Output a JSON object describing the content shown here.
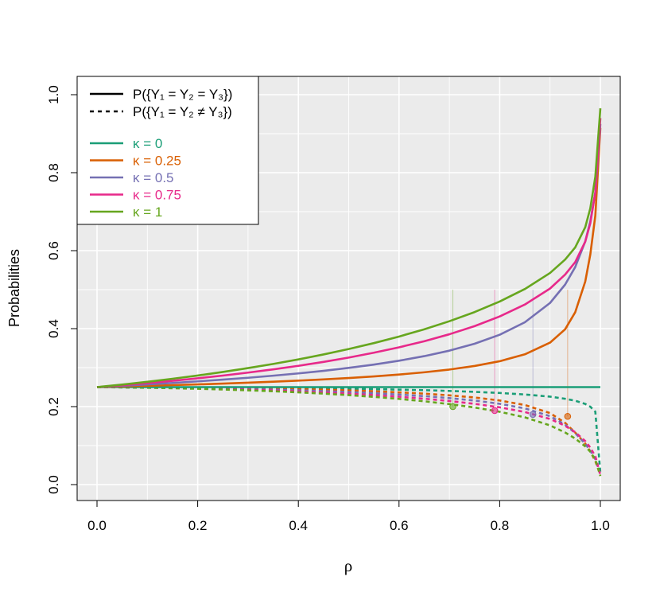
{
  "chart_data": {
    "type": "line",
    "xlabel": "ρ",
    "ylabel": "Probabilities",
    "xlim": [
      0,
      1
    ],
    "ylim": [
      0,
      1
    ],
    "x_ticks": [
      "0.0",
      "0.2",
      "0.4",
      "0.6",
      "0.8",
      "1.0"
    ],
    "y_ticks": [
      "0.0",
      "0.2",
      "0.4",
      "0.6",
      "0.8",
      "1.0"
    ],
    "grid": true,
    "background": "#ebebeb",
    "legend_placement": "top-left",
    "legend_linetypes": [
      {
        "style": "solid",
        "label": "P({Y₁ = Y₂ = Y₃})"
      },
      {
        "style": "dotted",
        "label": "P({Y₁ = Y₂ ≠ Y₃})"
      }
    ],
    "x": [
      0.0,
      0.05,
      0.1,
      0.15,
      0.2,
      0.25,
      0.3,
      0.35,
      0.4,
      0.45,
      0.5,
      0.55,
      0.6,
      0.65,
      0.7,
      0.75,
      0.8,
      0.85,
      0.9,
      0.93,
      0.95,
      0.97,
      0.98,
      0.99,
      1.0
    ],
    "series": [
      {
        "name": "κ = 0",
        "color": "#1b9e77",
        "equal_all": [
          0.25,
          0.25,
          0.25,
          0.25,
          0.25,
          0.25,
          0.25,
          0.25,
          0.25,
          0.25,
          0.25,
          0.25,
          0.25,
          0.25,
          0.25,
          0.25,
          0.25,
          0.25,
          0.25,
          0.25,
          0.25,
          0.25,
          0.25,
          0.25,
          0.25
        ],
        "two_equal": [
          0.25,
          0.2499,
          0.2498,
          0.2496,
          0.2494,
          0.2491,
          0.2487,
          0.2482,
          0.2476,
          0.2469,
          0.246,
          0.2449,
          0.2436,
          0.2421,
          0.2402,
          0.2379,
          0.235,
          0.2311,
          0.2256,
          0.2201,
          0.2152,
          0.2069,
          0.1998,
          0.1868,
          0.03
        ],
        "marker": null
      },
      {
        "name": "κ = 0.25",
        "color": "#d95f02",
        "equal_all": [
          0.25,
          0.2516,
          0.2533,
          0.2551,
          0.257,
          0.2591,
          0.2614,
          0.2639,
          0.2667,
          0.2698,
          0.2734,
          0.2775,
          0.2823,
          0.288,
          0.2951,
          0.3042,
          0.3164,
          0.3341,
          0.3641,
          0.3983,
          0.4419,
          0.5209,
          0.59,
          0.69,
          0.915
        ],
        "two_equal": [
          0.25,
          0.2498,
          0.2495,
          0.2491,
          0.2486,
          0.2479,
          0.2471,
          0.2461,
          0.2449,
          0.2434,
          0.2416,
          0.2394,
          0.2367,
          0.2333,
          0.229,
          0.2234,
          0.2157,
          0.2041,
          0.1835,
          0.1582,
          0.1335,
          0.1052,
          0.085,
          0.06,
          0.025
        ],
        "marker": {
          "x": 0.935,
          "y": 0.175
        }
      },
      {
        "name": "κ = 0.5",
        "color": "#7570b3",
        "equal_all": [
          0.25,
          0.2533,
          0.2569,
          0.2607,
          0.2648,
          0.2692,
          0.274,
          0.2793,
          0.2852,
          0.2918,
          0.2993,
          0.3078,
          0.3177,
          0.3294,
          0.3435,
          0.3612,
          0.3843,
          0.4163,
          0.4658,
          0.513,
          0.5578,
          0.6238,
          0.6752,
          0.7487,
          0.925
        ],
        "two_equal": [
          0.25,
          0.2495,
          0.249,
          0.2482,
          0.2473,
          0.2463,
          0.245,
          0.2435,
          0.2418,
          0.2397,
          0.2373,
          0.2344,
          0.231,
          0.2269,
          0.2219,
          0.2156,
          0.2073,
          0.1955,
          0.1755,
          0.1537,
          0.1322,
          0.1046,
          0.0869,
          0.0651,
          0.025
        ],
        "marker": {
          "x": 0.866,
          "y": 0.18
        }
      },
      {
        "name": "κ = 0.75",
        "color": "#e7298a",
        "equal_all": [
          0.25,
          0.2549,
          0.2603,
          0.2662,
          0.2726,
          0.2796,
          0.2872,
          0.2955,
          0.3046,
          0.3147,
          0.3258,
          0.3382,
          0.3521,
          0.3677,
          0.3856,
          0.4064,
          0.4312,
          0.4618,
          0.5028,
          0.5386,
          0.5706,
          0.6232,
          0.6704,
          0.7494,
          0.94
        ],
        "two_equal": [
          0.25,
          0.2494,
          0.2487,
          0.2477,
          0.2465,
          0.2451,
          0.2434,
          0.2414,
          0.2391,
          0.2364,
          0.2332,
          0.2296,
          0.2253,
          0.2203,
          0.2144,
          0.2072,
          0.1982,
          0.1862,
          0.1683,
          0.1509,
          0.1345,
          0.1116,
          0.0952,
          0.0726,
          0.025
        ],
        "marker": {
          "x": 0.79,
          "y": 0.19
        }
      },
      {
        "name": "κ = 1",
        "color": "#66a61e",
        "equal_all": [
          0.25,
          0.2566,
          0.2637,
          0.2714,
          0.2798,
          0.2889,
          0.2988,
          0.3095,
          0.3211,
          0.3338,
          0.3477,
          0.3629,
          0.3797,
          0.3983,
          0.419,
          0.4424,
          0.4696,
          0.5016,
          0.5427,
          0.5772,
          0.6082,
          0.6602,
          0.7086,
          0.7897,
          0.965
        ],
        "two_equal": [
          0.25,
          0.2492,
          0.2483,
          0.2471,
          0.2457,
          0.2439,
          0.2418,
          0.2394,
          0.2366,
          0.2333,
          0.2294,
          0.225,
          0.2198,
          0.2137,
          0.2065,
          0.1978,
          0.1868,
          0.1725,
          0.1518,
          0.1336,
          0.1181,
          0.0981,
          0.0842,
          0.0639,
          0.022
        ],
        "marker": {
          "x": 0.707,
          "y": 0.2
        }
      }
    ],
    "drop_lines": [
      {
        "x": 0.707,
        "y_from": 0.2,
        "y_to": 0.5,
        "color": "#66a61e"
      },
      {
        "x": 0.79,
        "y_from": 0.19,
        "y_to": 0.5,
        "color": "#e7298a"
      },
      {
        "x": 0.866,
        "y_from": 0.18,
        "y_to": 0.5,
        "color": "#7570b3"
      },
      {
        "x": 0.935,
        "y_from": 0.175,
        "y_to": 0.5,
        "color": "#d95f02"
      }
    ]
  }
}
